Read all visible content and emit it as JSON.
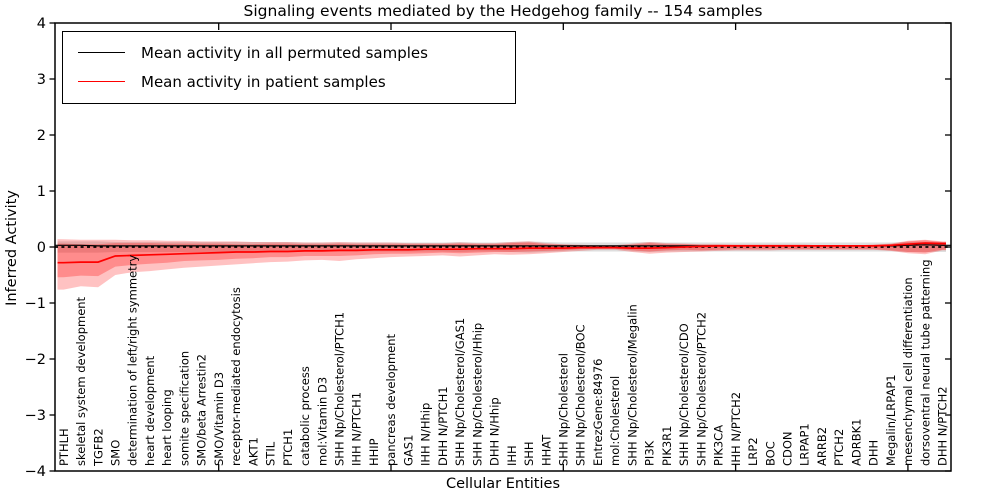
{
  "title": "Signaling events mediated by the Hedgehog family -- 154 samples",
  "axes": {
    "x_label": "Cellular Entities",
    "y_label": "Inferred Activity",
    "y_ticks": [
      4,
      3,
      2,
      1,
      0,
      -1,
      -2,
      -3,
      -4
    ],
    "y_min": -4,
    "y_max": 4
  },
  "legend": {
    "items": [
      {
        "label": "Mean activity in all permuted samples",
        "color": "#000000"
      },
      {
        "label": "Mean activity in patient samples",
        "color": "#ff0000"
      }
    ]
  },
  "colors": {
    "patient_line": "#ff0000",
    "permuted_line": "#000000",
    "zero_line": "#000000",
    "band_red": "rgba(255,0,0,0.24)",
    "band_red_inner": "rgba(255,0,0,0.28)",
    "band_gray": "rgba(0,0,0,0.13)",
    "spine": "#000000"
  },
  "chart_data": {
    "type": "line",
    "title": "Signaling events mediated by the Hedgehog family -- 154 samples",
    "xlabel": "Cellular Entities",
    "ylabel": "Inferred Activity",
    "ylim": [
      -4,
      4
    ],
    "grid": false,
    "legend_position": "upper left",
    "categories": [
      "PTHLH",
      "skeletal system development",
      "TGFB2",
      "SMO",
      "determination of left/right symmetry",
      "heart development",
      "heart looping",
      "somite specification",
      "SMO/beta Arrestin2",
      "SMO/Vitamin D3",
      "receptor-mediated endocytosis",
      "AKT1",
      "STIL",
      "PTCH1",
      "catabolic process",
      "mol:Vitamin D3",
      "SHH Np/Cholesterol/PTCH1",
      "IHH N/PTCH1",
      "HHIP",
      "pancreas development",
      "GAS1",
      "IHH N/Hhip",
      "DHH N/PTCH1",
      "SHH Np/Cholesterol/GAS1",
      "SHH Np/Cholesterol/Hhip",
      "DHH N/Hhip",
      "IHH",
      "SHH",
      "HHAT",
      "SHH Np/Cholesterol",
      "SHH Np/Cholesterol/BOC",
      "EntrezGene:84976",
      "mol:Cholesterol",
      "SHH Np/Cholesterol/Megalin",
      "PI3K",
      "PIK3R1",
      "SHH Np/Cholesterol/CDO",
      "SHH Np/Cholesterol/PTCH2",
      "PIK3CA",
      "IHH N/PTCH2",
      "LRP2",
      "BOC",
      "CDON",
      "LRPAP1",
      "ARRB2",
      "PTCH2",
      "ADRBK1",
      "DHH",
      "Megalin/LRPAP1",
      "mesenchymal cell differentiation",
      "dorsoventral neural tube patterning",
      "DHH N/PTCH2"
    ],
    "series": [
      {
        "name": "Mean activity in all permuted samples",
        "color": "#000000",
        "values": [
          0.03,
          0.03,
          0.02,
          0.02,
          0.02,
          0.02,
          0.02,
          0.02,
          0.02,
          0.02,
          0.02,
          0.02,
          0.02,
          0.02,
          0.02,
          0.02,
          0.02,
          0.02,
          0.02,
          0.02,
          0.02,
          0.02,
          0.02,
          0.02,
          0.02,
          0.02,
          0.02,
          0.02,
          0.02,
          0.02,
          0.02,
          0.02,
          0.02,
          0.02,
          0.02,
          0.02,
          0.02,
          0.02,
          0.02,
          0.02,
          0.02,
          0.02,
          0.02,
          0.02,
          0.02,
          0.02,
          0.02,
          0.02,
          0.02,
          0.03,
          0.04,
          0.03
        ]
      },
      {
        "name": "Mean activity in patient samples",
        "color": "#ff0000",
        "values": [
          -0.28,
          -0.27,
          -0.27,
          -0.16,
          -0.15,
          -0.14,
          -0.13,
          -0.12,
          -0.11,
          -0.1,
          -0.09,
          -0.09,
          -0.08,
          -0.08,
          -0.07,
          -0.07,
          -0.06,
          -0.06,
          -0.05,
          -0.05,
          -0.05,
          -0.04,
          -0.04,
          -0.04,
          -0.03,
          -0.03,
          -0.03,
          -0.02,
          -0.02,
          -0.02,
          -0.01,
          -0.01,
          -0.01,
          -0.02,
          -0.02,
          -0.01,
          0.0,
          0.01,
          0.02,
          0.02,
          0.02,
          0.02,
          0.02,
          0.02,
          0.02,
          0.02,
          0.02,
          0.02,
          0.03,
          0.05,
          0.07,
          0.06
        ]
      }
    ],
    "bands": [
      {
        "name": "patient-band-outer",
        "top": [
          0.14,
          0.13,
          0.13,
          0.13,
          0.12,
          0.12,
          0.11,
          0.11,
          0.1,
          0.1,
          0.1,
          0.09,
          0.09,
          0.09,
          0.08,
          0.08,
          0.09,
          0.08,
          0.08,
          0.08,
          0.07,
          0.07,
          0.07,
          0.08,
          0.07,
          0.07,
          0.09,
          0.1,
          0.07,
          0.05,
          0.04,
          0.03,
          0.03,
          0.06,
          0.09,
          0.07,
          0.06,
          0.05,
          0.05,
          0.04,
          0.04,
          0.04,
          0.04,
          0.04,
          0.03,
          0.03,
          0.03,
          0.04,
          0.06,
          0.11,
          0.13,
          0.1
        ],
        "bottom": [
          -0.76,
          -0.7,
          -0.72,
          -0.5,
          -0.45,
          -0.43,
          -0.4,
          -0.37,
          -0.35,
          -0.33,
          -0.31,
          -0.29,
          -0.27,
          -0.26,
          -0.24,
          -0.23,
          -0.25,
          -0.22,
          -0.2,
          -0.18,
          -0.17,
          -0.16,
          -0.15,
          -0.17,
          -0.15,
          -0.13,
          -0.14,
          -0.13,
          -0.11,
          -0.09,
          -0.07,
          -0.05,
          -0.05,
          -0.09,
          -0.12,
          -0.1,
          -0.09,
          -0.08,
          -0.07,
          -0.06,
          -0.06,
          -0.06,
          -0.05,
          -0.05,
          -0.05,
          -0.05,
          -0.05,
          -0.05,
          -0.07,
          -0.11,
          -0.13,
          -0.06
        ]
      },
      {
        "name": "patient-band-inner",
        "top": [
          0.06,
          0.05,
          0.05,
          0.07,
          0.07,
          0.07,
          0.06,
          0.06,
          0.06,
          0.06,
          0.05,
          0.05,
          0.06,
          0.06,
          0.05,
          0.05,
          0.06,
          0.05,
          0.05,
          0.05,
          0.05,
          0.05,
          0.05,
          0.06,
          0.05,
          0.05,
          0.07,
          0.08,
          0.05,
          0.04,
          0.03,
          0.02,
          0.02,
          0.04,
          0.07,
          0.05,
          0.05,
          0.04,
          0.04,
          0.04,
          0.04,
          0.04,
          0.04,
          0.04,
          0.03,
          0.03,
          0.03,
          0.04,
          0.05,
          0.1,
          0.12,
          0.09
        ],
        "bottom": [
          -0.54,
          -0.51,
          -0.52,
          -0.35,
          -0.32,
          -0.3,
          -0.28,
          -0.25,
          -0.24,
          -0.23,
          -0.21,
          -0.2,
          -0.18,
          -0.18,
          -0.16,
          -0.16,
          -0.16,
          -0.15,
          -0.13,
          -0.12,
          -0.12,
          -0.11,
          -0.1,
          -0.11,
          -0.1,
          -0.09,
          -0.09,
          -0.08,
          -0.07,
          -0.06,
          -0.04,
          -0.03,
          -0.03,
          -0.06,
          -0.08,
          -0.06,
          -0.05,
          -0.06,
          -0.05,
          -0.04,
          -0.04,
          -0.04,
          -0.04,
          -0.04,
          -0.04,
          -0.04,
          -0.04,
          -0.04,
          -0.06,
          -0.09,
          -0.1,
          -0.05
        ]
      },
      {
        "name": "permuted-band",
        "top": [
          0.1,
          0.1,
          0.1,
          0.09,
          0.09,
          0.09,
          0.09,
          0.09,
          0.09,
          0.09,
          0.09,
          0.09,
          0.09,
          0.09,
          0.08,
          0.08,
          0.08,
          0.08,
          0.08,
          0.08,
          0.08,
          0.08,
          0.08,
          0.09,
          0.08,
          0.08,
          0.09,
          0.1,
          0.09,
          0.08,
          0.08,
          0.08,
          0.08,
          0.08,
          0.09,
          0.08,
          0.08,
          0.08,
          0.08,
          0.08,
          0.08,
          0.08,
          0.08,
          0.08,
          0.08,
          0.08,
          0.08,
          0.08,
          0.08,
          0.09,
          0.09,
          0.09
        ],
        "bottom": [
          -0.1,
          -0.1,
          -0.1,
          -0.09,
          -0.09,
          -0.09,
          -0.09,
          -0.09,
          -0.09,
          -0.09,
          -0.09,
          -0.09,
          -0.09,
          -0.09,
          -0.08,
          -0.08,
          -0.08,
          -0.08,
          -0.08,
          -0.08,
          -0.08,
          -0.08,
          -0.08,
          -0.09,
          -0.08,
          -0.08,
          -0.09,
          -0.1,
          -0.09,
          -0.08,
          -0.08,
          -0.08,
          -0.08,
          -0.08,
          -0.09,
          -0.08,
          -0.08,
          -0.08,
          -0.08,
          -0.08,
          -0.08,
          -0.08,
          -0.08,
          -0.08,
          -0.08,
          -0.08,
          -0.08,
          -0.08,
          -0.08,
          -0.09,
          -0.09,
          -0.09
        ]
      }
    ],
    "zero_line": {
      "y": 0,
      "style": "dashed"
    },
    "x_major_ticks_every": 10
  }
}
